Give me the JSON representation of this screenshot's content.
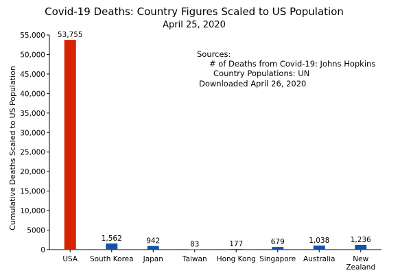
{
  "chart_data": {
    "type": "bar",
    "title": "Covid-19 Deaths:  Country Figures Scaled to US Population",
    "subtitle": "April 25, 2020",
    "xlabel": "",
    "ylabel": "Cumulative Deaths Scaled to US Population",
    "ylim": [
      0,
      55000
    ],
    "yticks": [
      0,
      5000,
      10000,
      15000,
      20000,
      25000,
      30000,
      35000,
      40000,
      45000,
      50000,
      55000
    ],
    "ytick_labels": [
      "0",
      "5000",
      "10,000",
      "15,000",
      "20,000",
      "25,000",
      "30,000",
      "35,000",
      "40,000",
      "45,000",
      "50,000",
      "55,000"
    ],
    "grid": false,
    "categories": [
      "USA",
      "South Korea",
      "Japan",
      "Taiwan",
      "Hong Kong",
      "Singapore",
      "Australia",
      "New Zealand"
    ],
    "category_lines": [
      [
        "USA"
      ],
      [
        "South Korea"
      ],
      [
        "Japan"
      ],
      [
        "Taiwan"
      ],
      [
        "Hong Kong"
      ],
      [
        "Singapore"
      ],
      [
        "Australia"
      ],
      [
        "New",
        "Zealand"
      ]
    ],
    "values": [
      53755,
      1562,
      942,
      83,
      177,
      679,
      1038,
      1236
    ],
    "value_labels": [
      "53,755",
      "1,562",
      "942",
      "83",
      "177",
      "679",
      "1,038",
      "1,236"
    ],
    "bar_colors": [
      "#d62400",
      "#1454a8",
      "#1454a8",
      "#1454a8",
      "#1454a8",
      "#1454a8",
      "#1454a8",
      "#1454a8"
    ],
    "annotation_lines": [
      "Sources:",
      "# of Deaths from Covid-19:  Johns Hopkins",
      "Country Populations:  UN",
      "Downloaded April 26, 2020"
    ]
  }
}
